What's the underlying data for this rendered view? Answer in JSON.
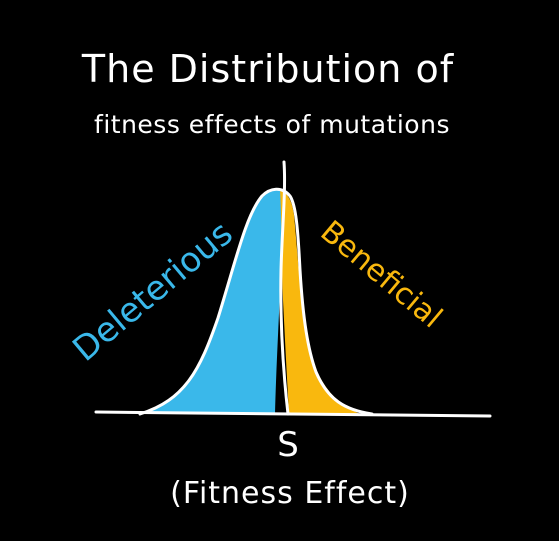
{
  "title": {
    "line1": "The Distribution of",
    "line2": "fitness effects of mutations"
  },
  "labels": {
    "deleterious": "Deleterious",
    "beneficial": "Beneficial",
    "axis_symbol": "S",
    "axis_caption": "(Fitness Effect)"
  },
  "colors": {
    "background": "#000000",
    "ink": "#ffffff",
    "deleterious": "#3ab8ea",
    "beneficial": "#f9b80e"
  }
}
